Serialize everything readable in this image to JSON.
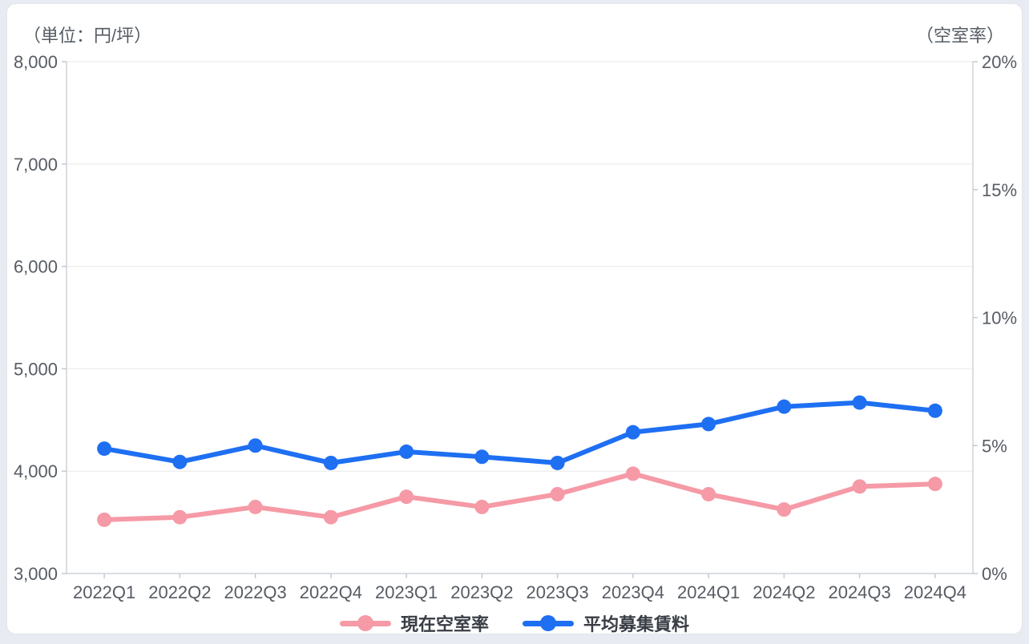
{
  "chart_data": {
    "type": "line",
    "title": "",
    "categories": [
      "2022Q1",
      "2022Q2",
      "2022Q3",
      "2022Q4",
      "2023Q1",
      "2023Q2",
      "2023Q3",
      "2023Q4",
      "2024Q1",
      "2024Q2",
      "2024Q3",
      "2024Q4"
    ],
    "series": [
      {
        "name": "現在空室率",
        "axis": "right",
        "color": "#f59aa6",
        "unit": "%",
        "values": [
          2.1,
          2.2,
          2.6,
          2.2,
          3.0,
          2.6,
          3.1,
          3.9,
          3.1,
          2.5,
          3.4,
          3.5
        ]
      },
      {
        "name": "平均募集賃料",
        "axis": "left",
        "color": "#1e6ff2",
        "unit": "円/坪",
        "values": [
          4220,
          4090,
          4250,
          4080,
          4190,
          4140,
          4080,
          4380,
          4460,
          4630,
          4670,
          4590
        ]
      }
    ],
    "left_axis": {
      "label": "（単位：円/坪）",
      "min": 3000,
      "max": 8000,
      "step": 1000,
      "tick_labels": [
        "8,000",
        "7,000",
        "6,000",
        "5,000",
        "4,000",
        "3,000"
      ]
    },
    "right_axis": {
      "label": "（空室率）",
      "min": 0,
      "max": 20,
      "step": 5,
      "tick_labels": [
        "20%",
        "15%",
        "10%",
        "5%",
        "0%"
      ]
    },
    "grid": "horizontal",
    "legend_position": "bottom"
  }
}
